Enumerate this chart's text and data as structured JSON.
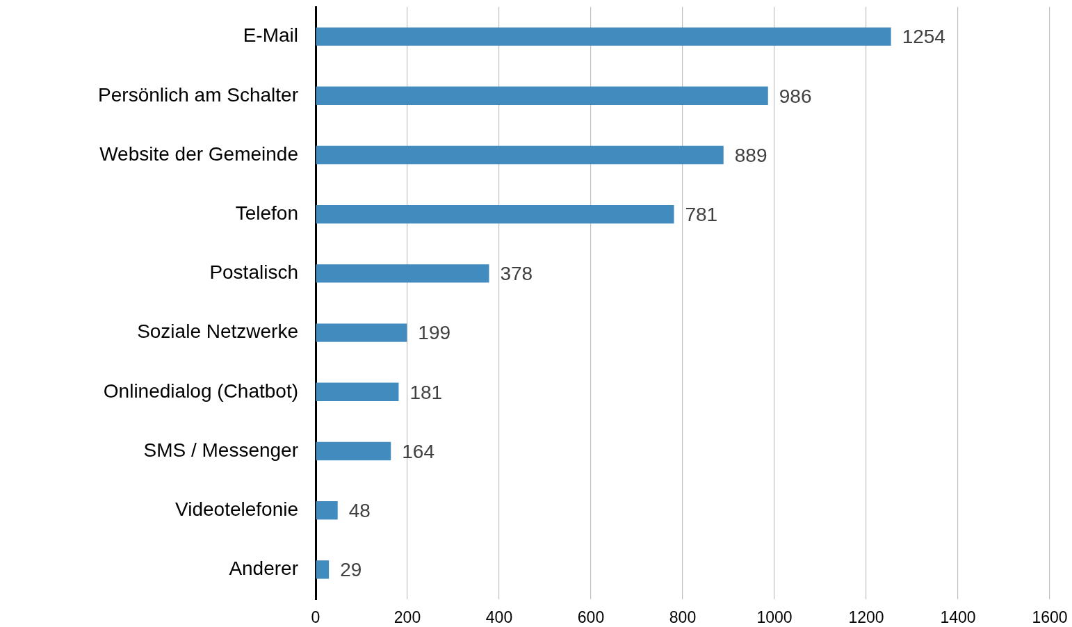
{
  "chart_data": {
    "type": "bar",
    "orientation": "horizontal",
    "categories": [
      "E-Mail",
      "Persönlich am Schalter",
      "Website der Gemeinde",
      "Telefon",
      "Postalisch",
      "Soziale Netzwerke",
      "Onlinedialog (Chatbot)",
      "SMS / Messenger",
      "Videotelefonie",
      "Anderer"
    ],
    "values": [
      1254,
      986,
      889,
      781,
      378,
      199,
      181,
      164,
      48,
      29
    ],
    "color": "#428bbf",
    "xlim": [
      0,
      1600
    ],
    "xticks": [
      0,
      200,
      400,
      600,
      800,
      1000,
      1200,
      1400,
      1600
    ],
    "grid": "x",
    "data_labels": true
  }
}
